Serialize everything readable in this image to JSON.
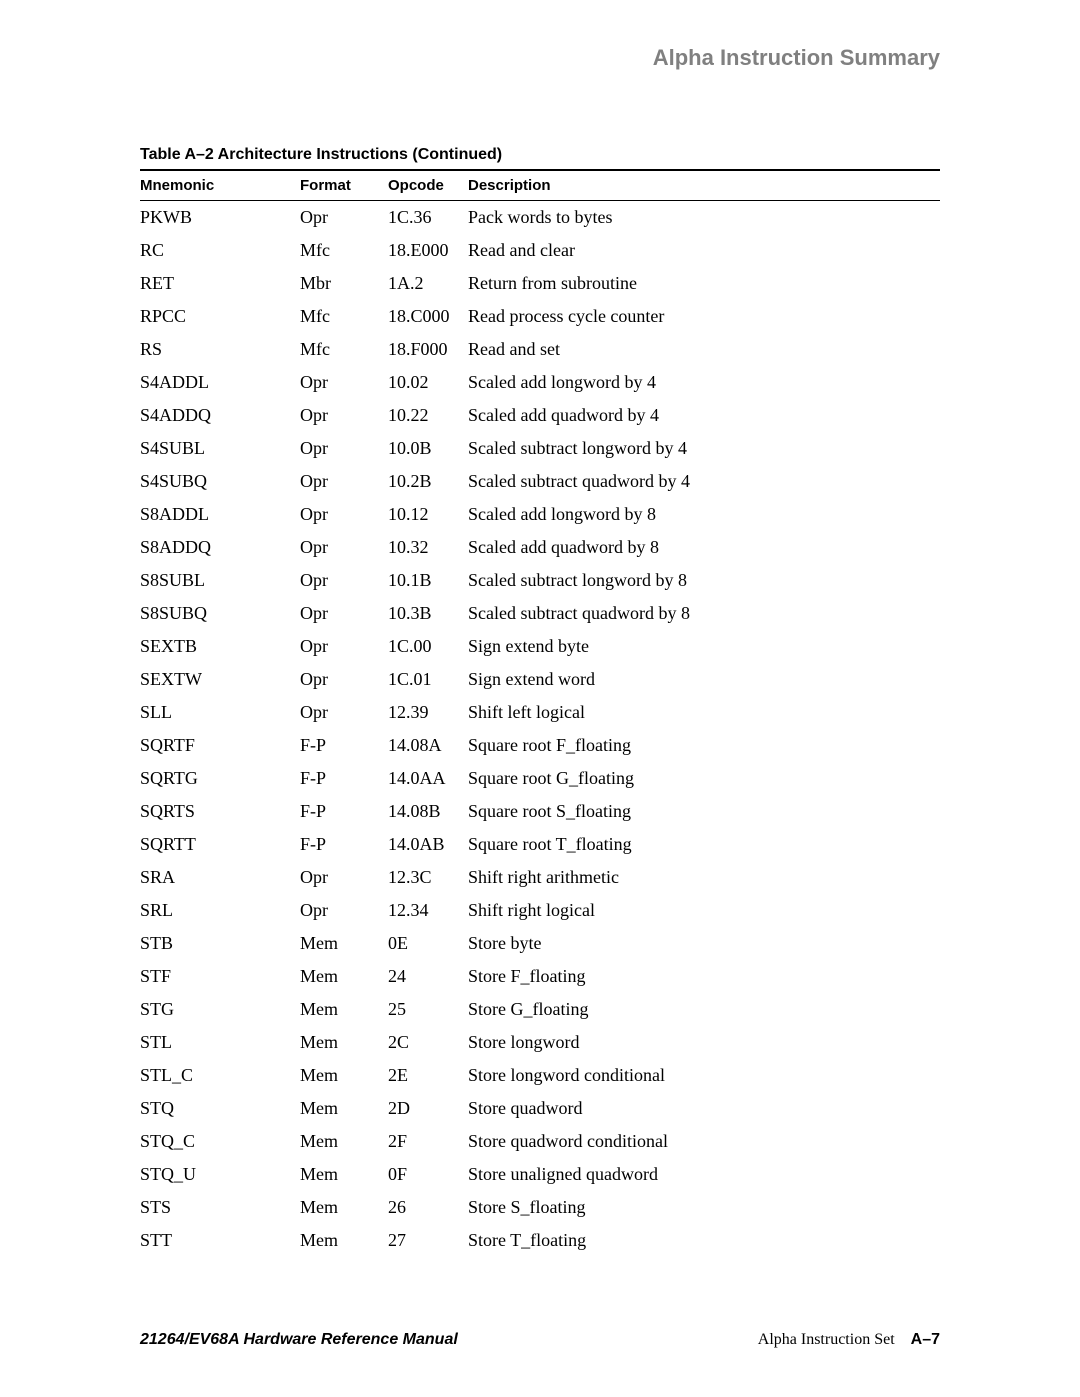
{
  "header": {
    "title": "Alpha Instruction Summary"
  },
  "table": {
    "caption": "Table A–2  Architecture Instructions (Continued)",
    "columns": [
      "Mnemonic",
      "Format",
      "Opcode",
      "Description"
    ],
    "rows": [
      [
        "PKWB",
        "Opr",
        "1C.36",
        "Pack words to bytes"
      ],
      [
        "RC",
        "Mfc",
        "18.E000",
        "Read and clear"
      ],
      [
        "RET",
        "Mbr",
        "1A.2",
        "Return from subroutine"
      ],
      [
        "RPCC",
        "Mfc",
        "18.C000",
        "Read process cycle counter"
      ],
      [
        "RS",
        "Mfc",
        "18.F000",
        "Read and set"
      ],
      [
        "S4ADDL",
        "Opr",
        "10.02",
        "Scaled add longword by 4"
      ],
      [
        "S4ADDQ",
        "Opr",
        "10.22",
        "Scaled add quadword by 4"
      ],
      [
        "S4SUBL",
        "Opr",
        "10.0B",
        "Scaled subtract longword by 4"
      ],
      [
        "S4SUBQ",
        "Opr",
        "10.2B",
        "Scaled subtract quadword by 4"
      ],
      [
        "S8ADDL",
        "Opr",
        "10.12",
        "Scaled add longword by 8"
      ],
      [
        "S8ADDQ",
        "Opr",
        "10.32",
        "Scaled add quadword by 8"
      ],
      [
        "S8SUBL",
        "Opr",
        "10.1B",
        "Scaled subtract longword by 8"
      ],
      [
        "S8SUBQ",
        "Opr",
        "10.3B",
        "Scaled subtract quadword by 8"
      ],
      [
        "SEXTB",
        "Opr",
        "1C.00",
        "Sign extend byte"
      ],
      [
        "SEXTW",
        "Opr",
        "1C.01",
        "Sign extend word"
      ],
      [
        "SLL",
        "Opr",
        "12.39",
        "Shift left logical"
      ],
      [
        "SQRTF",
        "F-P",
        "14.08A",
        "Square root F_floating"
      ],
      [
        "SQRTG",
        "F-P",
        "14.0AA",
        "Square root G_floating"
      ],
      [
        "SQRTS",
        "F-P",
        "14.08B",
        "Square root S_floating"
      ],
      [
        "SQRTT",
        "F-P",
        "14.0AB",
        "Square root T_floating"
      ],
      [
        "SRA",
        "Opr",
        "12.3C",
        "Shift right arithmetic"
      ],
      [
        "SRL",
        "Opr",
        "12.34",
        "Shift right logical"
      ],
      [
        "STB",
        "Mem",
        "0E",
        "Store byte"
      ],
      [
        "STF",
        "Mem",
        "24",
        "Store F_floating"
      ],
      [
        "STG",
        "Mem",
        "25",
        "Store G_floating"
      ],
      [
        "STL",
        "Mem",
        "2C",
        "Store longword"
      ],
      [
        "STL_C",
        "Mem",
        "2E",
        "Store longword conditional"
      ],
      [
        "STQ",
        "Mem",
        "2D",
        "Store quadword"
      ],
      [
        "STQ_C",
        "Mem",
        "2F",
        "Store quadword conditional"
      ],
      [
        "STQ_U",
        "Mem",
        "0F",
        "Store unaligned quadword"
      ],
      [
        "STS",
        "Mem",
        "26",
        "Store S_floating"
      ],
      [
        "STT",
        "Mem",
        "27",
        "Store T_floating"
      ]
    ]
  },
  "footer": {
    "left": "21264/EV68A Hardware Reference Manual",
    "right_text": "Alpha Instruction Set",
    "page": "A–7"
  }
}
